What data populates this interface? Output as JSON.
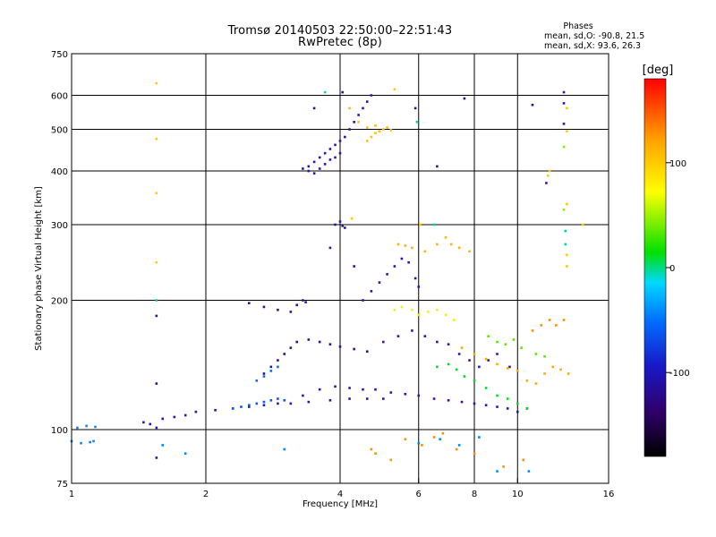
{
  "header": {
    "title_line1": "Tromsø 20140503 22:50:00–22:51:43",
    "title_line2": "RwPretec (8p)"
  },
  "stats": {
    "heading": "Phases",
    "line_o": "mean, sd,O: -90.8, 21.5",
    "line_x": "mean, sd,X:  93.6, 26.3"
  },
  "chart_data": {
    "type": "scatter",
    "title": "Tromsø 20140503 22:50:00–22:51:43",
    "subtitle": "RwPretec (8p)",
    "xlabel": "Frequency [MHz]",
    "ylabel": "Stationary phase Virtual Height [km]",
    "xscale": "log",
    "yscale": "log",
    "xlim": [
      1,
      16
    ],
    "ylim": [
      75,
      750
    ],
    "xticks": [
      1,
      2,
      4,
      6,
      8,
      10,
      16
    ],
    "yticks": [
      75,
      100,
      200,
      300,
      400,
      500,
      600,
      750
    ],
    "x_gridlines": [
      2,
      4,
      6,
      8,
      10
    ],
    "y_gridlines": [
      100,
      200,
      300,
      400,
      500,
      600
    ],
    "grid": true,
    "colorbar": {
      "label": "[deg]",
      "range": [
        -180,
        180
      ],
      "ticks": [
        100,
        0,
        -100
      ],
      "colors": [
        "#000000",
        "#300060",
        "#2020c0",
        "#0060ff",
        "#00d8ff",
        "#00e000",
        "#ffff00",
        "#ffa000",
        "#ff0000"
      ]
    },
    "series": [
      {
        "points": [
          [
            1.0,
            94
          ],
          [
            1.05,
            93
          ],
          [
            1.1,
            93.5
          ],
          [
            1.12,
            94
          ],
          [
            1.03,
            101
          ],
          [
            1.08,
            102
          ],
          [
            1.13,
            101.5
          ],
          [
            1.6,
            92
          ],
          [
            1.8,
            88
          ],
          [
            3.0,
            90
          ]
        ],
        "phase": -30
      },
      {
        "points": [
          [
            1.45,
            104
          ],
          [
            1.5,
            103
          ],
          [
            1.55,
            101
          ],
          [
            1.6,
            106
          ],
          [
            1.7,
            107
          ],
          [
            1.8,
            108
          ],
          [
            1.9,
            110
          ],
          [
            2.1,
            111
          ],
          [
            2.3,
            112
          ],
          [
            2.5,
            113
          ],
          [
            2.7,
            114
          ],
          [
            2.9,
            115
          ],
          [
            3.1,
            115
          ],
          [
            3.4,
            116
          ],
          [
            3.8,
            117
          ],
          [
            4.2,
            118
          ],
          [
            4.6,
            118
          ],
          [
            5.0,
            118
          ]
        ],
        "phase": -100
      },
      {
        "points": [
          [
            2.3,
            112
          ],
          [
            2.4,
            113
          ],
          [
            2.5,
            114
          ],
          [
            2.6,
            115
          ],
          [
            2.7,
            116
          ],
          [
            2.8,
            117
          ],
          [
            2.9,
            118
          ],
          [
            3.0,
            117
          ]
        ],
        "phase": -50
      },
      {
        "points": [
          [
            2.7,
            135
          ],
          [
            2.8,
            140
          ],
          [
            2.9,
            145
          ],
          [
            3.0,
            150
          ],
          [
            3.1,
            155
          ],
          [
            3.2,
            160
          ],
          [
            3.4,
            162
          ],
          [
            3.6,
            160
          ],
          [
            3.8,
            158
          ],
          [
            4.0,
            156
          ],
          [
            4.3,
            154
          ],
          [
            4.6,
            152
          ]
        ],
        "phase": -110
      },
      {
        "points": [
          [
            2.6,
            130
          ],
          [
            2.7,
            133
          ],
          [
            2.8,
            137
          ],
          [
            2.9,
            140
          ]
        ],
        "phase": -40
      },
      {
        "points": [
          [
            3.3,
            120
          ],
          [
            3.6,
            124
          ],
          [
            3.9,
            126
          ],
          [
            4.2,
            125
          ],
          [
            4.5,
            124
          ],
          [
            4.8,
            124
          ],
          [
            5.2,
            122
          ],
          [
            5.6,
            121
          ],
          [
            6.0,
            120
          ],
          [
            6.5,
            118
          ],
          [
            7.0,
            117
          ],
          [
            7.5,
            116
          ],
          [
            8.0,
            115
          ],
          [
            8.5,
            114
          ],
          [
            9.0,
            113
          ],
          [
            9.5,
            112
          ],
          [
            10.0,
            110
          ],
          [
            10.5,
            112
          ]
        ],
        "phase": -100
      },
      {
        "points": [
          [
            2.5,
            197
          ],
          [
            2.7,
            193
          ],
          [
            2.9,
            190
          ],
          [
            3.1,
            188
          ],
          [
            3.2,
            195
          ],
          [
            3.3,
            200
          ],
          [
            3.35,
            198
          ]
        ],
        "phase": -105
      },
      {
        "points": [
          [
            3.4,
            410
          ],
          [
            3.5,
            420
          ],
          [
            3.6,
            430
          ],
          [
            3.7,
            440
          ],
          [
            3.8,
            450
          ],
          [
            3.9,
            460
          ],
          [
            4.0,
            470
          ],
          [
            4.1,
            480
          ],
          [
            4.2,
            500
          ],
          [
            4.3,
            520
          ],
          [
            4.4,
            540
          ],
          [
            4.5,
            560
          ],
          [
            4.6,
            580
          ],
          [
            4.7,
            600
          ],
          [
            3.3,
            405
          ],
          [
            3.4,
            400
          ],
          [
            3.5,
            395
          ],
          [
            3.6,
            405
          ],
          [
            3.7,
            415
          ],
          [
            3.8,
            425
          ],
          [
            3.9,
            430
          ],
          [
            4.0,
            440
          ]
        ],
        "phase": -100
      },
      {
        "points": [
          [
            4.6,
            470
          ],
          [
            4.7,
            480
          ],
          [
            4.8,
            490
          ],
          [
            4.9,
            495
          ],
          [
            5.0,
            500
          ],
          [
            5.1,
            505
          ],
          [
            5.2,
            498
          ],
          [
            4.2,
            560
          ],
          [
            4.4,
            520
          ],
          [
            4.6,
            505
          ],
          [
            4.8,
            510
          ]
        ],
        "phase": 120
      },
      {
        "points": [
          [
            3.9,
            300
          ],
          [
            4.0,
            305
          ],
          [
            4.05,
            298
          ],
          [
            4.1,
            295
          ],
          [
            3.8,
            265
          ],
          [
            4.3,
            240
          ]
        ],
        "phase": -100
      },
      {
        "points": [
          [
            4.5,
            200
          ],
          [
            4.7,
            210
          ],
          [
            4.9,
            220
          ],
          [
            5.1,
            230
          ],
          [
            5.3,
            240
          ],
          [
            5.5,
            250
          ],
          [
            5.7,
            245
          ],
          [
            5.9,
            225
          ],
          [
            6.0,
            215
          ]
        ],
        "phase": -100
      },
      {
        "points": [
          [
            5.4,
            270
          ],
          [
            5.6,
            268
          ],
          [
            5.8,
            265
          ],
          [
            6.2,
            260
          ],
          [
            6.6,
            270
          ],
          [
            6.9,
            280
          ],
          [
            7.1,
            270
          ],
          [
            7.4,
            265
          ],
          [
            7.8,
            260
          ]
        ],
        "phase": 125
      },
      {
        "points": [
          [
            5.3,
            190
          ],
          [
            5.5,
            193
          ],
          [
            5.8,
            190
          ],
          [
            6.0,
            185
          ],
          [
            6.3,
            188
          ],
          [
            6.6,
            190
          ],
          [
            6.9,
            185
          ],
          [
            7.2,
            180
          ]
        ],
        "phase": 85
      },
      {
        "points": [
          [
            5.0,
            160
          ],
          [
            5.4,
            165
          ],
          [
            5.8,
            170
          ],
          [
            6.2,
            165
          ],
          [
            6.6,
            160
          ],
          [
            7.0,
            158
          ],
          [
            7.4,
            150
          ],
          [
            7.8,
            145
          ],
          [
            8.2,
            140
          ],
          [
            8.6,
            145
          ],
          [
            9.0,
            150
          ],
          [
            9.6,
            140
          ]
        ],
        "phase": -100
      },
      {
        "points": [
          [
            6.6,
            140
          ],
          [
            7.0,
            142
          ],
          [
            7.3,
            138
          ],
          [
            7.6,
            133
          ],
          [
            8.0,
            130
          ],
          [
            8.5,
            125
          ],
          [
            9.0,
            120
          ],
          [
            9.5,
            118
          ],
          [
            10.0,
            115
          ],
          [
            10.5,
            112
          ]
        ],
        "phase": 40
      },
      {
        "points": [
          [
            7.5,
            155
          ],
          [
            8.0,
            150
          ],
          [
            8.5,
            146
          ],
          [
            9.0,
            142
          ],
          [
            9.5,
            139
          ],
          [
            10.0,
            137
          ],
          [
            10.5,
            130
          ],
          [
            11.0,
            128
          ],
          [
            11.5,
            135
          ],
          [
            12.0,
            140
          ],
          [
            12.5,
            138
          ],
          [
            13.0,
            135
          ]
        ],
        "phase": 130
      },
      {
        "points": [
          [
            8.6,
            165
          ],
          [
            9.0,
            160
          ],
          [
            9.4,
            158
          ],
          [
            9.8,
            162
          ],
          [
            10.2,
            155
          ],
          [
            11.0,
            150
          ],
          [
            11.5,
            148
          ]
        ],
        "phase": 60
      },
      {
        "points": [
          [
            10.8,
            170
          ],
          [
            11.3,
            175
          ],
          [
            11.8,
            180
          ],
          [
            12.2,
            175
          ],
          [
            12.7,
            180
          ]
        ],
        "phase": 140
      },
      {
        "points": [
          [
            4.7,
            90
          ],
          [
            4.8,
            88
          ],
          [
            5.2,
            85
          ],
          [
            5.6,
            95
          ],
          [
            6.1,
            92
          ],
          [
            6.5,
            96
          ],
          [
            6.8,
            98
          ],
          [
            7.3,
            90
          ],
          [
            8.0,
            88
          ],
          [
            9.3,
            82
          ],
          [
            10.3,
            85
          ]
        ],
        "phase": 140
      },
      {
        "points": [
          [
            6.0,
            93
          ],
          [
            6.7,
            95
          ],
          [
            7.4,
            92
          ],
          [
            8.2,
            96
          ],
          [
            9.0,
            80
          ],
          [
            10.6,
            80
          ]
        ],
        "phase": -30
      },
      {
        "points": [
          [
            1.55,
            128
          ],
          [
            1.55,
            184
          ],
          [
            1.55,
            86
          ],
          [
            3.5,
            560
          ],
          [
            4.05,
            610
          ],
          [
            5.9,
            560
          ],
          [
            6.6,
            410
          ],
          [
            7.6,
            590
          ],
          [
            10.8,
            570
          ]
        ],
        "phase": -110
      },
      {
        "points": [
          [
            1.55,
            200
          ],
          [
            3.7,
            610
          ],
          [
            5.95,
            520
          ],
          [
            6.5,
            300
          ],
          [
            12.8,
            290
          ],
          [
            12.8,
            270
          ]
        ],
        "phase": 20
      },
      {
        "points": [
          [
            1.55,
            640
          ],
          [
            1.55,
            475
          ],
          [
            1.55,
            355
          ],
          [
            1.55,
            245
          ],
          [
            5.3,
            620
          ],
          [
            6.05,
            300
          ],
          [
            4.25,
            310
          ],
          [
            11.8,
            400
          ],
          [
            12.9,
            335
          ],
          [
            12.9,
            255
          ],
          [
            12.9,
            240
          ],
          [
            14.0,
            300
          ],
          [
            12.9,
            560
          ],
          [
            12.9,
            495
          ],
          [
            11.7,
            390
          ]
        ],
        "phase": 115
      },
      {
        "points": [
          [
            12.7,
            610
          ],
          [
            12.7,
            575
          ],
          [
            12.7,
            515
          ],
          [
            11.6,
            375
          ]
        ],
        "phase": -100
      },
      {
        "points": [
          [
            12.7,
            455
          ],
          [
            12.7,
            325
          ]
        ],
        "phase": 70
      }
    ]
  }
}
